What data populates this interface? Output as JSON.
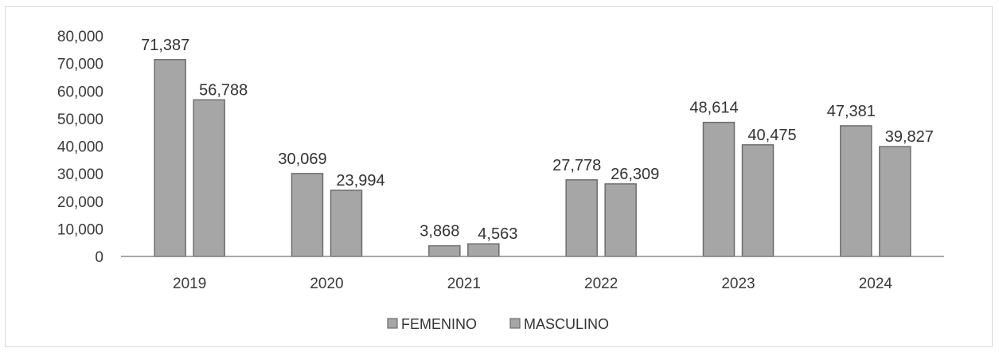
{
  "chart_data": {
    "type": "bar",
    "title": "",
    "xlabel": "",
    "ylabel": "",
    "categories": [
      "2019",
      "2020",
      "2021",
      "2022",
      "2023",
      "2024"
    ],
    "series": [
      {
        "name": "FEMENINO",
        "values": [
          71387,
          30069,
          3868,
          27778,
          48614,
          47381
        ],
        "labels": [
          "71,387",
          "30,069",
          "3,868",
          "27,778",
          "48,614",
          "47,381"
        ],
        "color": "#a6a6a6"
      },
      {
        "name": "MASCULINO",
        "values": [
          56788,
          23994,
          4563,
          26309,
          40475,
          39827
        ],
        "labels": [
          "56,788",
          "23,994",
          "4,563",
          "26,309",
          "40,475",
          "39,827"
        ],
        "color": "#a6a6a6"
      }
    ],
    "ylim": [
      0,
      80000
    ],
    "yticks": [
      "0",
      "10,000",
      "20,000",
      "30,000",
      "40,000",
      "50,000",
      "60,000",
      "70,000",
      "80,000"
    ],
    "grid": false,
    "legend_position": "bottom"
  }
}
